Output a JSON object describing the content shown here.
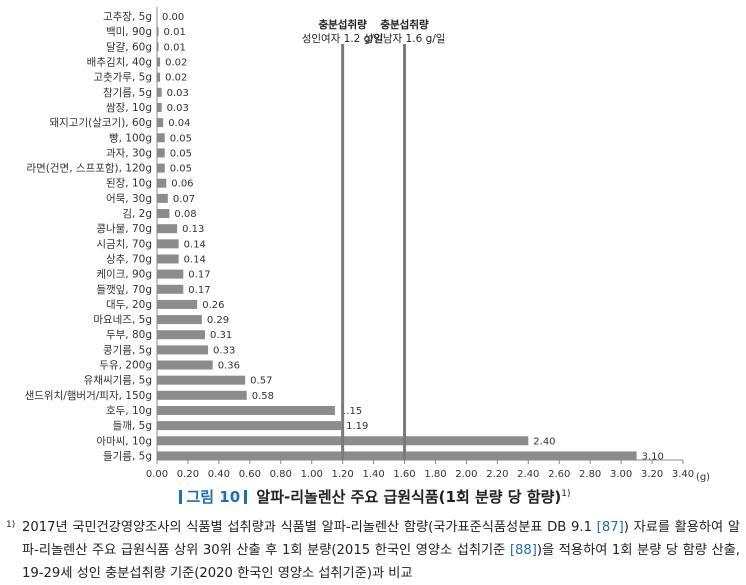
{
  "chart_data": {
    "type": "bar",
    "orientation": "horizontal",
    "categories": [
      "고추장, 5g",
      "백미, 90g",
      "달걀, 60g",
      "배추김치, 40g",
      "고춧가루, 5g",
      "참기름, 5g",
      "쌈장, 10g",
      "돼지고기(살코기), 60g",
      "빵, 100g",
      "과자, 30g",
      "라면(건면, 스프포함), 120g",
      "된장, 10g",
      "어묵, 30g",
      "김, 2g",
      "콩나물, 70g",
      "시금치, 70g",
      "상추, 70g",
      "케이크, 90g",
      "들깻잎, 70g",
      "대두, 20g",
      "마요네즈, 5g",
      "두부, 80g",
      "콩기름, 5g",
      "두유, 200g",
      "유채씨기름, 5g",
      "샌드위치/햄버거/피자, 150g",
      "호두, 10g",
      "들깨, 5g",
      "아마씨, 10g",
      "들기름, 5g"
    ],
    "values": [
      0.0,
      0.01,
      0.01,
      0.02,
      0.02,
      0.03,
      0.03,
      0.04,
      0.05,
      0.05,
      0.05,
      0.06,
      0.07,
      0.08,
      0.13,
      0.14,
      0.14,
      0.17,
      0.17,
      0.26,
      0.29,
      0.31,
      0.33,
      0.36,
      0.57,
      0.58,
      1.15,
      1.19,
      2.4,
      3.1
    ],
    "value_labels": [
      "0.00",
      "0.01",
      "0.01",
      "0.02",
      "0.02",
      "0.03",
      "0.03",
      "0.04",
      "0.05",
      "0.05",
      "0.05",
      "0.06",
      "0.07",
      "0.08",
      "0.13",
      "0.14",
      "0.14",
      "0.17",
      "0.17",
      "0.26",
      "0.29",
      "0.31",
      "0.33",
      "0.36",
      "0.57",
      "0.58",
      "1.15",
      "1.19",
      "2.40",
      "3.10"
    ],
    "xlim": [
      0,
      3.4
    ],
    "x_ticks": [
      "0.00",
      "0.20",
      "0.40",
      "0.60",
      "0.80",
      "1.00",
      "1.20",
      "1.40",
      "1.60",
      "1.80",
      "2.00",
      "2.20",
      "2.40",
      "2.60",
      "2.80",
      "3.00",
      "3.20",
      "3.40"
    ],
    "x_unit": "(g)",
    "bar_color": "#8c8c8c",
    "reference_color": "#7a7a7a",
    "reference_lines": [
      {
        "value": 1.2,
        "label_line1": "충분섭취량",
        "label_line2": "성인여자 1.2 g/일"
      },
      {
        "value": 1.6,
        "label_line1": "충분섭취량",
        "label_line2": "성인남자 1.6 g/일"
      }
    ],
    "grid": false,
    "legend": "none"
  },
  "caption": {
    "figure_label": "그림 10",
    "title": "알파-리놀렌산 주요 급원식품(1회 분량 당 함량)",
    "sup": "1)"
  },
  "footnote": {
    "mark": "1)",
    "text_a": "2017년 국민건강영양조사의 식품별 섭취량과 식품별 알파-리놀렌산 함량(국가표준식품성분표 DB 9.1 ",
    "ref_a": "[87]",
    "text_b": ") 자료를 활용하여 알파-리놀렌산 주요 급원식품 상위 30위 산출 후 1회 분량(2015 한국인 영양소 섭취기준 ",
    "ref_b": "[88]",
    "text_c": ")을 적용하여 1회 분량 당 함량 산출, 19-29세 성인 충분섭취량 기준(2020 한국인 영양소 섭취기준)과 비교"
  }
}
